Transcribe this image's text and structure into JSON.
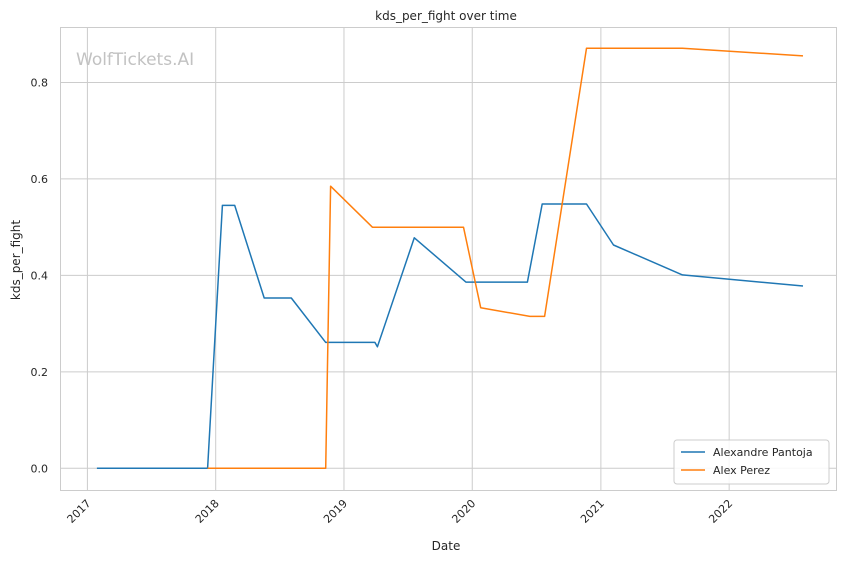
{
  "chart_data": {
    "type": "line",
    "title": "kds_per_fight over time",
    "xlabel": "Date",
    "ylabel": "kds_per_fight",
    "watermark": "WolfTickets.AI",
    "x_ticks": [
      "2017",
      "2018",
      "2019",
      "2020",
      "2021",
      "2022"
    ],
    "y_ticks": [
      "0.0",
      "0.2",
      "0.4",
      "0.6",
      "0.8"
    ],
    "xlim": [
      "2016-10-15",
      "2022-11-01"
    ],
    "ylim": [
      -0.045,
      0.915
    ],
    "grid": true,
    "legend_position": "bottom-right",
    "series": [
      {
        "name": "Alexandre Pantoja",
        "color": "#1f77b4",
        "points": [
          [
            "2017-01-28",
            0.0
          ],
          [
            "2017-12-09",
            0.0
          ],
          [
            "2018-01-20",
            0.545
          ],
          [
            "2018-02-24",
            0.545
          ],
          [
            "2018-05-19",
            0.353
          ],
          [
            "2018-08-04",
            0.353
          ],
          [
            "2018-11-10",
            0.261
          ],
          [
            "2019-03-30",
            0.261
          ],
          [
            "2019-04-06",
            0.252
          ],
          [
            "2019-07-20",
            0.478
          ],
          [
            "2019-12-14",
            0.386
          ],
          [
            "2020-06-06",
            0.386
          ],
          [
            "2020-07-18",
            0.548
          ],
          [
            "2020-11-21",
            0.548
          ],
          [
            "2021-02-06",
            0.463
          ],
          [
            "2021-08-21",
            0.401
          ],
          [
            "2022-07-30",
            0.378
          ]
        ]
      },
      {
        "name": "Alex Perez",
        "color": "#ff7f0e",
        "points": [
          [
            "2017-12-09",
            0.0
          ],
          [
            "2018-11-10",
            0.0
          ],
          [
            "2018-11-24",
            0.585
          ],
          [
            "2019-03-23",
            0.5
          ],
          [
            "2019-12-07",
            0.5
          ],
          [
            "2020-01-25",
            0.333
          ],
          [
            "2020-06-13",
            0.315
          ],
          [
            "2020-07-25",
            0.315
          ],
          [
            "2020-11-21",
            0.871
          ],
          [
            "2021-08-21",
            0.871
          ],
          [
            "2022-07-30",
            0.855
          ]
        ]
      }
    ]
  }
}
